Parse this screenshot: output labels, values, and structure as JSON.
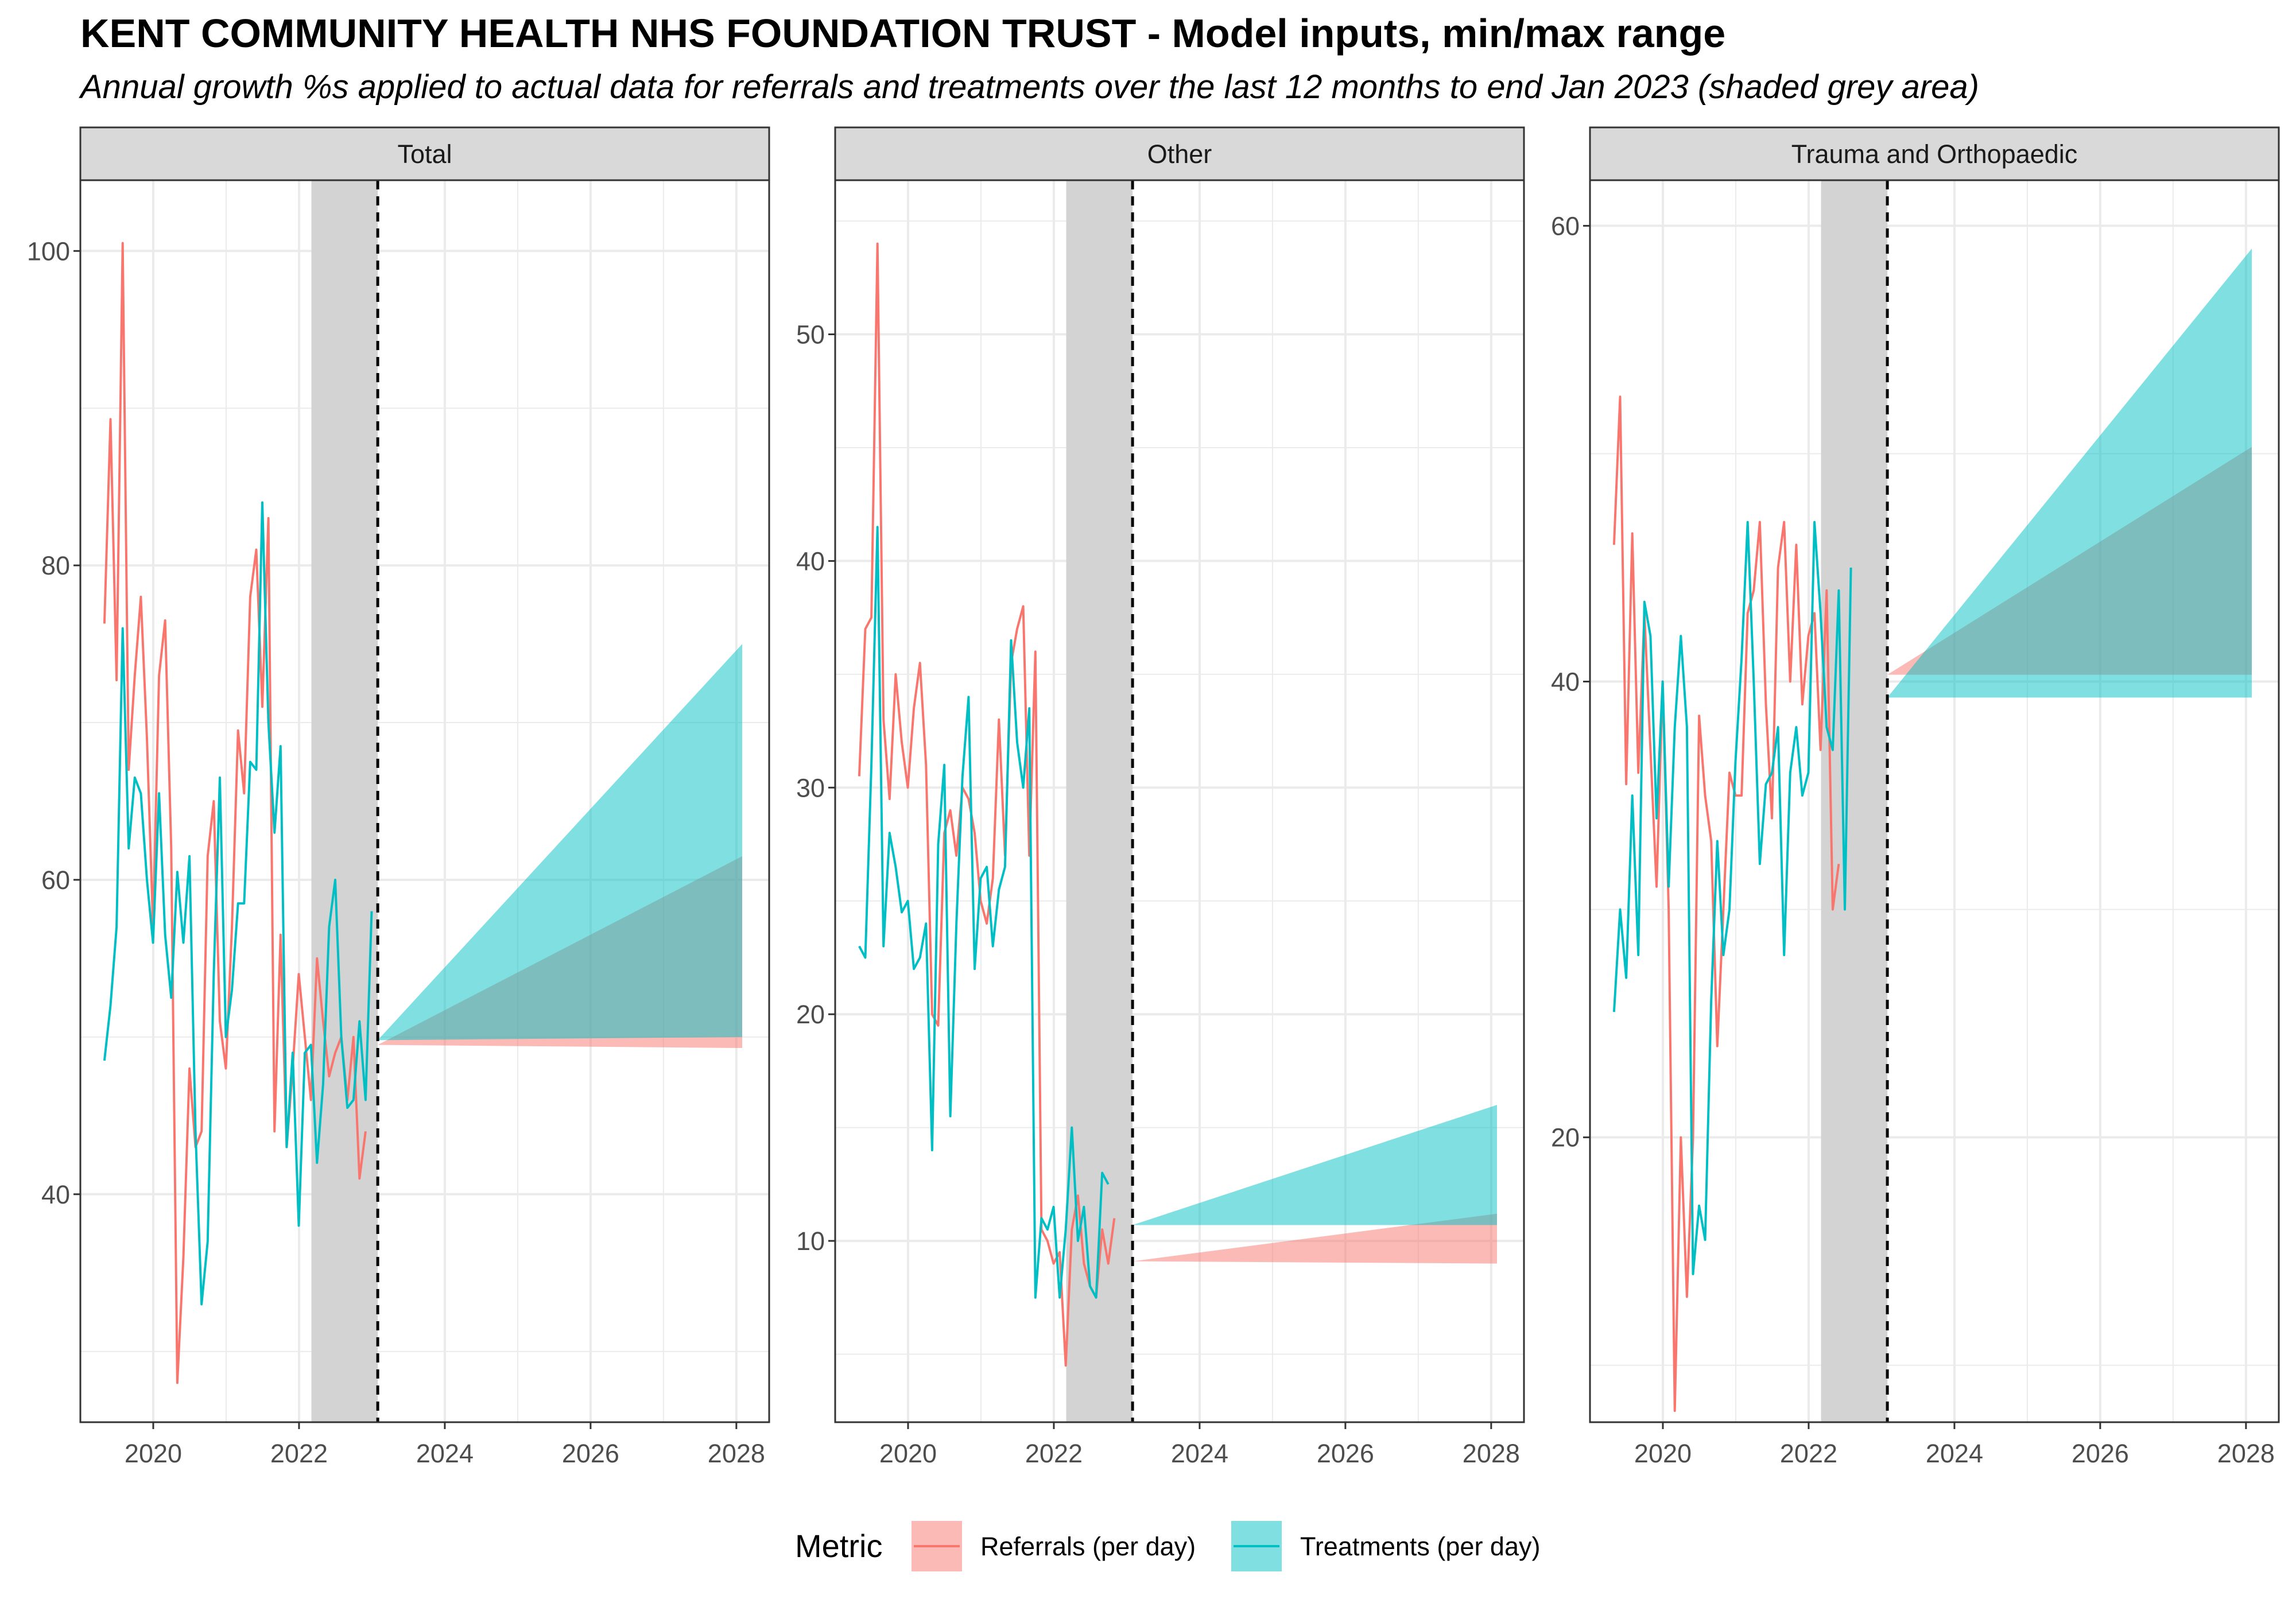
{
  "title": "KENT COMMUNITY HEALTH NHS FOUNDATION TRUST - Model inputs, min/max range",
  "subtitle": "Annual growth %s applied to actual data for referrals and treatments over the last 12 months to end Jan 2023 (shaded grey area)",
  "legend": {
    "title": "Metric",
    "entries": [
      {
        "label": "Referrals (per day)",
        "color": "#F8766D",
        "fill": "#F8766D"
      },
      {
        "label": "Treatments (per day)",
        "color": "#00BFC4",
        "fill": "#00BFC4"
      }
    ]
  },
  "colors": {
    "referrals": "#F8766D",
    "treatments": "#00BFC4",
    "shade": "#d3d3d3",
    "strip": "#d9d9d9",
    "grid": "#ebebeb"
  },
  "chart_data": [
    {
      "type": "line",
      "panel": "Total",
      "xlim": [
        2019.0,
        2028.45
      ],
      "ylim": [
        25.5,
        104.5
      ],
      "x_ticks": [
        2020,
        2022,
        2024,
        2026,
        2028
      ],
      "y_ticks": [
        40,
        60,
        80,
        100
      ],
      "shaded_period": [
        2022.17,
        2023.08
      ],
      "forecast_start": 2023.08,
      "series": [
        {
          "name": "Referrals (per day)",
          "x_start": 2019.33,
          "values": [
            76.3,
            89.3,
            72.7,
            100.5,
            67.0,
            73.0,
            78.0,
            69.0,
            57.0,
            73.0,
            76.5,
            62.0,
            28.0,
            36.0,
            48.0,
            43.0,
            44.0,
            61.5,
            65.0,
            51.0,
            48.0,
            57.0,
            69.5,
            65.5,
            78.0,
            81.0,
            71.0,
            83.0,
            44.0,
            56.5,
            43.0,
            48.0,
            54.0,
            50.0,
            46.0,
            55.0,
            51.0,
            47.5,
            49.0,
            50.0,
            46.0,
            50.0,
            41.0,
            44.0
          ]
        },
        {
          "name": "Treatments (per day)",
          "x_start": 2019.33,
          "values": [
            48.5,
            52.0,
            57.0,
            76.0,
            62.0,
            66.5,
            65.5,
            60.0,
            56.0,
            65.5,
            56.5,
            52.5,
            60.5,
            56.0,
            61.5,
            44.0,
            33.0,
            37.0,
            54.0,
            66.5,
            50.0,
            53.0,
            58.5,
            58.5,
            67.5,
            67.0,
            84.0,
            70.0,
            63.0,
            68.5,
            43.0,
            49.0,
            38.0,
            49.0,
            49.5,
            42.0,
            47.0,
            57.0,
            60.0,
            50.0,
            45.5,
            46.0,
            51.0,
            46.0,
            58.0
          ]
        }
      ],
      "ranges": [
        {
          "name": "Referrals (per day)",
          "start": [
            2023.08,
            49.5,
            49.5
          ],
          "end": [
            2028.08,
            49.3,
            61.5
          ]
        },
        {
          "name": "Treatments (per day)",
          "start": [
            2023.08,
            49.8,
            49.8
          ],
          "end": [
            2028.08,
            50.0,
            75.0
          ]
        }
      ]
    },
    {
      "type": "line",
      "panel": "Other",
      "xlim": [
        2019.0,
        2028.45
      ],
      "ylim": [
        2.0,
        56.8
      ],
      "x_ticks": [
        2020,
        2022,
        2024,
        2026,
        2028
      ],
      "y_ticks": [
        10,
        20,
        30,
        40,
        50
      ],
      "shaded_period": [
        2022.17,
        2023.08
      ],
      "forecast_start": 2023.08,
      "series": [
        {
          "name": "Referrals (per day)",
          "x_start": 2019.33,
          "values": [
            30.5,
            37.0,
            37.5,
            54.0,
            33.0,
            29.5,
            35.0,
            32.0,
            30.0,
            33.5,
            35.5,
            31.0,
            20.0,
            19.5,
            28.0,
            29.0,
            27.0,
            30.0,
            29.5,
            28.0,
            25.0,
            24.0,
            26.0,
            33.0,
            27.0,
            35.5,
            37.0,
            38.0,
            27.0,
            36.0,
            10.5,
            10.0,
            9.0,
            9.5,
            4.5,
            10.5,
            12.0,
            9.0,
            8.0,
            7.5,
            10.5,
            9.0,
            11.0
          ]
        },
        {
          "name": "Treatments (per day)",
          "x_start": 2019.33,
          "values": [
            23.0,
            22.5,
            31.0,
            41.5,
            23.0,
            28.0,
            26.5,
            24.5,
            25.0,
            22.0,
            22.5,
            24.0,
            14.0,
            27.5,
            31.0,
            15.5,
            24.0,
            30.5,
            34.0,
            22.0,
            26.0,
            26.5,
            23.0,
            25.5,
            26.5,
            36.5,
            32.0,
            30.0,
            33.5,
            7.5,
            11.0,
            10.5,
            11.5,
            7.5,
            10.5,
            15.0,
            10.0,
            11.5,
            8.0,
            7.5,
            13.0,
            12.5
          ]
        }
      ],
      "ranges": [
        {
          "name": "Referrals (per day)",
          "start": [
            2023.08,
            9.1,
            9.1
          ],
          "end": [
            2028.08,
            9.0,
            11.2
          ]
        },
        {
          "name": "Treatments (per day)",
          "start": [
            2023.08,
            10.7,
            10.7
          ],
          "end": [
            2028.08,
            10.7,
            16.0
          ]
        }
      ]
    },
    {
      "type": "line",
      "panel": "Trauma and Orthopaedic",
      "xlim": [
        2019.0,
        2028.45
      ],
      "ylim": [
        7.5,
        62.0
      ],
      "x_ticks": [
        2020,
        2022,
        2024,
        2026,
        2028
      ],
      "y_ticks": [
        20,
        40,
        60
      ],
      "shaded_period": [
        2022.17,
        2023.08
      ],
      "forecast_start": 2023.08,
      "series": [
        {
          "name": "Referrals (per day)",
          "x_start": 2019.33,
          "values": [
            46.0,
            52.5,
            35.5,
            46.5,
            36.0,
            43.0,
            37.0,
            31.0,
            40.0,
            30.0,
            8.0,
            20.0,
            13.0,
            20.0,
            38.5,
            35.0,
            33.0,
            24.0,
            30.0,
            36.0,
            35.0,
            35.0,
            43.0,
            44.0,
            47.0,
            39.0,
            34.0,
            45.0,
            47.0,
            40.0,
            46.0,
            39.0,
            42.0,
            43.0,
            37.0,
            44.0,
            30.0,
            32.0
          ]
        },
        {
          "name": "Treatments (per day)",
          "x_start": 2019.33,
          "values": [
            25.5,
            30.0,
            27.0,
            35.0,
            28.0,
            43.5,
            42.0,
            34.0,
            40.0,
            31.0,
            38.0,
            42.0,
            38.0,
            14.0,
            17.0,
            15.5,
            26.0,
            33.0,
            28.0,
            30.0,
            36.5,
            41.0,
            47.0,
            40.0,
            32.0,
            35.5,
            36.0,
            38.0,
            28.0,
            36.0,
            38.0,
            35.0,
            36.0,
            47.0,
            43.0,
            38.0,
            37.0,
            44.0,
            30.0,
            45.0
          ]
        }
      ],
      "ranges": [
        {
          "name": "Referrals (per day)",
          "start": [
            2023.08,
            40.3,
            40.3
          ],
          "end": [
            2028.08,
            40.3,
            50.3
          ]
        },
        {
          "name": "Treatments (per day)",
          "start": [
            2023.08,
            39.3,
            39.3
          ],
          "end": [
            2028.08,
            39.3,
            59.0
          ]
        }
      ]
    }
  ]
}
